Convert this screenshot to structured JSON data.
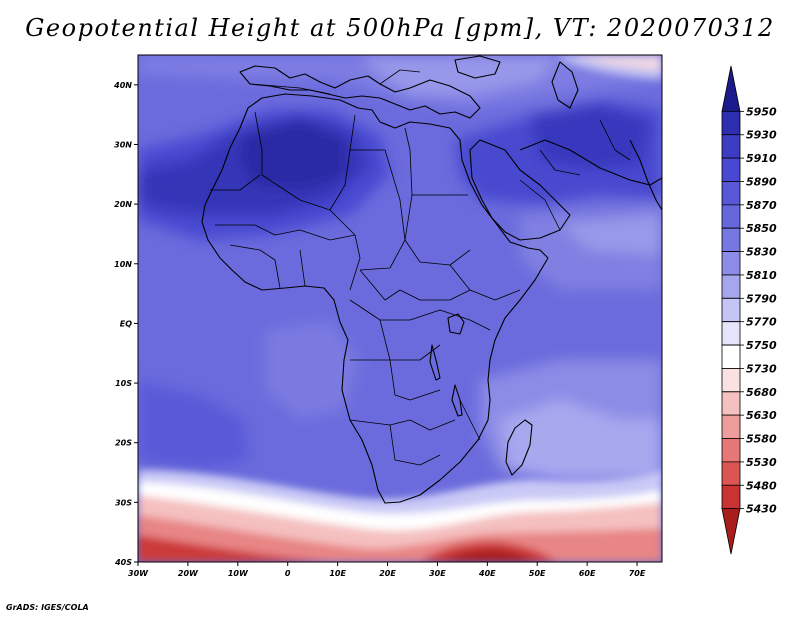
{
  "title": "Geopotential Height at 500hPa [gpm], VT: 2020070312",
  "credit": "GrADS: IGES/COLA",
  "map": {
    "lat_ticks": [
      "40N",
      "30N",
      "20N",
      "10N",
      "EQ",
      "10S",
      "20S",
      "30S",
      "40S"
    ],
    "lon_ticks": [
      "30W",
      "20W",
      "10W",
      "0",
      "10E",
      "20E",
      "30E",
      "40E",
      "50E",
      "60E",
      "70E"
    ],
    "lon_range": [
      -30,
      75
    ],
    "lat_range": [
      -40,
      45
    ]
  },
  "colorbar": {
    "levels": [
      "5950",
      "5930",
      "5910",
      "5890",
      "5870",
      "5850",
      "5830",
      "5810",
      "5790",
      "5770",
      "5750",
      "5730",
      "5680",
      "5630",
      "5580",
      "5530",
      "5480",
      "5430"
    ],
    "colors": [
      "#1a1a8c",
      "#2d2db0",
      "#3b3bc4",
      "#4848d2",
      "#5757d8",
      "#6666dd",
      "#7777e2",
      "#8c8ce8",
      "#a6a6ef",
      "#c4c4f5",
      "#e4e4fb",
      "#ffffff",
      "#fbe2e2",
      "#f5c0c0",
      "#ee9c9c",
      "#e67777",
      "#dc5454",
      "#c93333",
      "#aa1d1d"
    ]
  },
  "field_colors": {
    "very_high": "#2a2aa8",
    "high": "#3b3bc4",
    "mid_high": "#4d4dd2",
    "mid": "#5e5ed9",
    "base": "#6b6bdd",
    "light": "#8484e4",
    "lighter": "#a3a3ee",
    "pale": "#c9c9f6",
    "white": "#ffffff",
    "pink": "#f5c0c0",
    "salmon": "#e88585",
    "red": "#cc3a3a",
    "dark_red": "#a81c1c"
  }
}
